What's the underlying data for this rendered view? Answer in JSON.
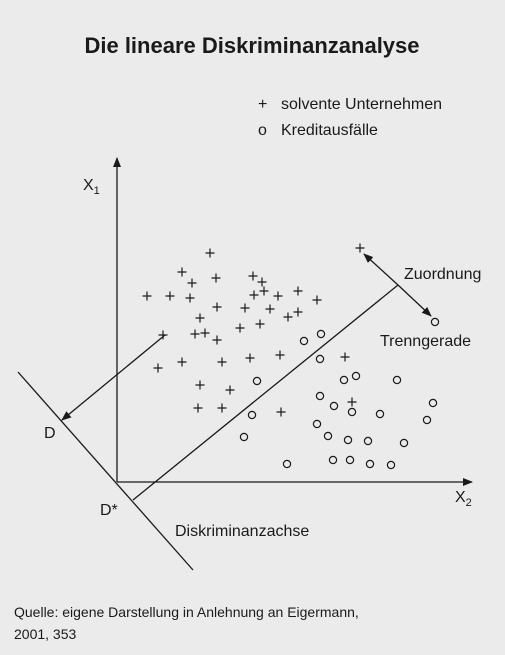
{
  "title": "Die lineare Diskriminanzanalyse",
  "legend": [
    {
      "symbol": "+",
      "label": "solvente Unternehmen"
    },
    {
      "symbol": "o",
      "label": "Kreditausfälle"
    }
  ],
  "axes": {
    "x1": {
      "base": "X",
      "sub": "1"
    },
    "x2": {
      "base": "X",
      "sub": "2"
    }
  },
  "labels": {
    "zuordnung": "Zuordnung",
    "trenngerade": "Trenngerade",
    "d": "D",
    "dstar": "D*",
    "achse": "Diskriminanzachse"
  },
  "source": [
    "Quelle: eigene Darstellung in Anlehnung an Eigermann,",
    "2001, 353"
  ]
}
